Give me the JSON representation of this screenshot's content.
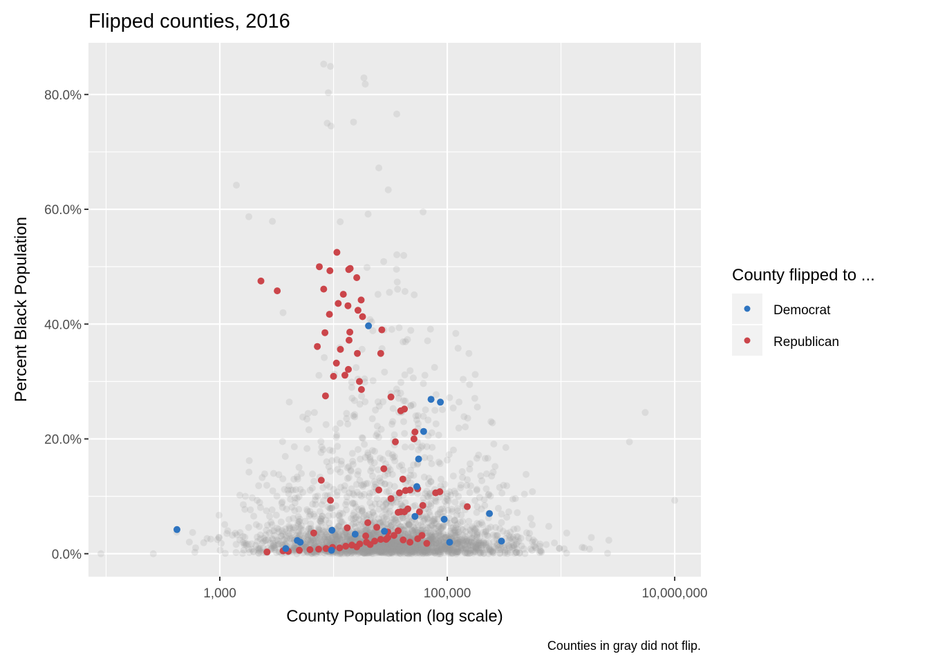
{
  "chart_data": {
    "type": "scatter",
    "title": "Flipped counties, 2016",
    "xlabel": "County Population (log scale)",
    "ylabel": "Percent Black Population",
    "caption": "Counties in gray did not flip.",
    "x_scale": "log10",
    "xlim": [
      70,
      17000000
    ],
    "ylim": [
      -4,
      89
    ],
    "x_ticks": [
      {
        "value": 1000,
        "label": "1,000"
      },
      {
        "value": 100000,
        "label": "100,000"
      },
      {
        "value": 10000000,
        "label": "10,000,000"
      }
    ],
    "y_ticks": [
      {
        "value": 0,
        "label": "0.0%"
      },
      {
        "value": 20,
        "label": "20.0%"
      },
      {
        "value": 40,
        "label": "40.0%"
      },
      {
        "value": 60,
        "label": "60.0%"
      },
      {
        "value": 80,
        "label": "80.0%"
      }
    ],
    "grid": true,
    "legend": {
      "title": "County flipped to ...",
      "position": "right",
      "entries": [
        {
          "label": "Democrat",
          "color": "#2E74C0"
        },
        {
          "label": "Republican",
          "color": "#CB454A"
        }
      ]
    },
    "colors": {
      "not_flipped": "#999999",
      "panel_background": "#EBEBEB",
      "grid": "#FFFFFF",
      "legend_key_background": "#F2F2F2"
    },
    "series": [
      {
        "name": "Democrat",
        "color": "#2E74C0",
        "points": [
          [
            420,
            4.2
          ],
          [
            20300,
            39.7
          ],
          [
            72000,
            26.9
          ],
          [
            87000,
            26.4
          ],
          [
            62000,
            21.3
          ],
          [
            56000,
            16.5
          ],
          [
            54000,
            11.7
          ],
          [
            52000,
            6.5
          ],
          [
            94000,
            6.0
          ],
          [
            235000,
            7.0
          ],
          [
            300000,
            2.2
          ],
          [
            105000,
            2.0
          ],
          [
            28000,
            3.9
          ],
          [
            15500,
            3.4
          ],
          [
            9700,
            4.1
          ],
          [
            9600,
            0.6
          ],
          [
            4800,
            2.3
          ],
          [
            5100,
            2.0
          ],
          [
            3800,
            0.9
          ]
        ]
      },
      {
        "name": "Republican",
        "color": "#CB454A",
        "points": [
          [
            2300,
            47.5
          ],
          [
            3200,
            45.8
          ],
          [
            10700,
            52.5
          ],
          [
            7500,
            50.0
          ],
          [
            14000,
            49.7
          ],
          [
            9300,
            49.3
          ],
          [
            13600,
            49.5
          ],
          [
            16000,
            48.1
          ],
          [
            8200,
            46.1
          ],
          [
            12200,
            45.2
          ],
          [
            17500,
            44.2
          ],
          [
            11000,
            43.6
          ],
          [
            13400,
            43.2
          ],
          [
            16400,
            42.4
          ],
          [
            9200,
            41.7
          ],
          [
            18000,
            41.3
          ],
          [
            26600,
            39.0
          ],
          [
            13700,
            37.2
          ],
          [
            13900,
            38.6
          ],
          [
            8400,
            38.5
          ],
          [
            7200,
            36.1
          ],
          [
            16200,
            34.9
          ],
          [
            26000,
            34.9
          ],
          [
            11500,
            35.6
          ],
          [
            10600,
            33.2
          ],
          [
            12600,
            31.1
          ],
          [
            13500,
            32.1
          ],
          [
            10000,
            30.9
          ],
          [
            16900,
            30.0
          ],
          [
            32000,
            27.3
          ],
          [
            17600,
            28.6
          ],
          [
            8500,
            27.5
          ],
          [
            39000,
            24.9
          ],
          [
            42000,
            25.2
          ],
          [
            35000,
            19.5
          ],
          [
            52000,
            21.2
          ],
          [
            51000,
            20.0
          ],
          [
            7800,
            12.8
          ],
          [
            27700,
            14.8
          ],
          [
            40700,
            13.0
          ],
          [
            47000,
            11.1
          ],
          [
            43000,
            11.0
          ],
          [
            38000,
            10.6
          ],
          [
            25000,
            11.1
          ],
          [
            32000,
            9.6
          ],
          [
            55000,
            11.3
          ],
          [
            79000,
            10.6
          ],
          [
            86000,
            10.8
          ],
          [
            150000,
            8.2
          ],
          [
            37000,
            7.2
          ],
          [
            39000,
            7.3
          ],
          [
            42000,
            7.3
          ],
          [
            45000,
            7.8
          ],
          [
            57000,
            7.3
          ],
          [
            61000,
            8.4
          ],
          [
            9400,
            9.3
          ],
          [
            13200,
            4.5
          ],
          [
            6700,
            3.6
          ],
          [
            20000,
            5.4
          ],
          [
            24000,
            4.6
          ],
          [
            19200,
            3.1
          ],
          [
            30000,
            3.8
          ],
          [
            37000,
            4.0
          ],
          [
            29000,
            2.5
          ],
          [
            16000,
            1.2
          ],
          [
            21000,
            1.6
          ],
          [
            2600,
            0.3
          ],
          [
            3600,
            0.5
          ],
          [
            4000,
            0.4
          ],
          [
            5000,
            0.6
          ],
          [
            6200,
            0.7
          ],
          [
            7400,
            0.8
          ],
          [
            8600,
            0.9
          ],
          [
            9800,
            1.1
          ],
          [
            11300,
            1.0
          ],
          [
            12800,
            1.3
          ],
          [
            14500,
            1.5
          ],
          [
            17000,
            1.7
          ],
          [
            19500,
            2.0
          ],
          [
            23000,
            2.2
          ],
          [
            26000,
            2.5
          ],
          [
            30000,
            2.8
          ],
          [
            34000,
            3.2
          ],
          [
            41000,
            2.4
          ],
          [
            47000,
            2.0
          ],
          [
            55000,
            2.6
          ],
          [
            60000,
            3.2
          ],
          [
            66000,
            1.8
          ]
        ]
      }
    ],
    "background_series": {
      "name": "Not flipped",
      "color": "#999999",
      "alpha": 0.2,
      "approx_count": 2500,
      "distribution_note": "dense cloud: pop 1,000–1,000,000, mostly 0–15% black; upper arm to ~85% for pop 5,000–100,000",
      "sample_points": [
        [
          90,
          0.0
        ],
        [
          260,
          0.0
        ],
        [
          8200,
          85.3
        ],
        [
          9400,
          84.9
        ],
        [
          9000,
          80.3
        ],
        [
          18500,
          82.9
        ],
        [
          19000,
          81.8
        ],
        [
          36000,
          76.6
        ],
        [
          15000,
          75.2
        ],
        [
          8800,
          75.0
        ],
        [
          9500,
          74.5
        ],
        [
          100000,
          10.0
        ],
        [
          10000000,
          9.3
        ],
        [
          5500000,
          24.6
        ],
        [
          4000000,
          19.5
        ],
        [
          1400,
          64.2
        ],
        [
          1800,
          58.7
        ],
        [
          2900,
          57.9
        ],
        [
          3600,
          42.0
        ],
        [
          1500,
          10.2
        ]
      ]
    }
  }
}
